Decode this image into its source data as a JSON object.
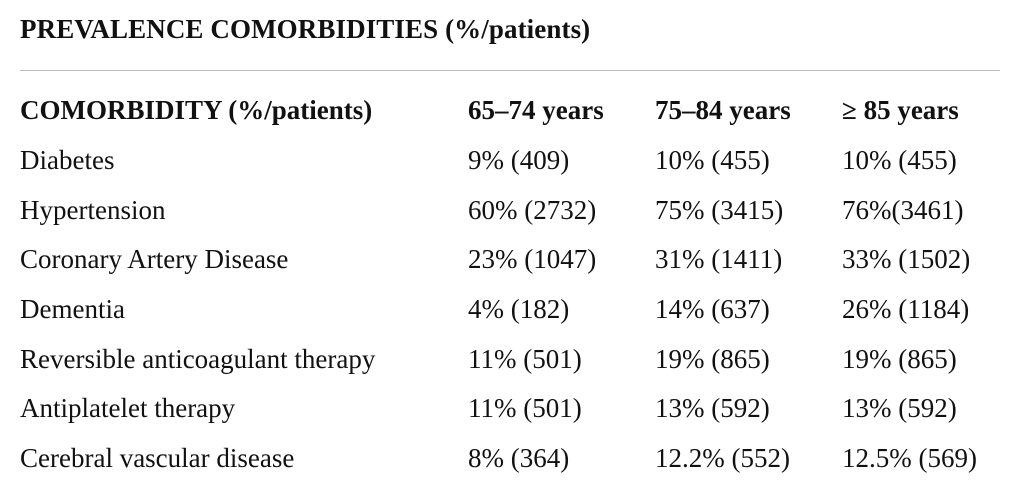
{
  "title": "PREVALENCE COMORBIDITIES (%/patients)",
  "table": {
    "headers": [
      "COMORBIDITY (%/patients)",
      "65–74 years",
      "75–84 years",
      "≥ 85 years"
    ],
    "rows": [
      [
        "Diabetes",
        "9% (409)",
        "10% (455)",
        "10% (455)"
      ],
      [
        "Hypertension",
        "60% (2732)",
        "75% (3415)",
        "76%(3461)"
      ],
      [
        "Coronary Artery Disease",
        "23% (1047)",
        "31% (1411)",
        "33% (1502)"
      ],
      [
        "Dementia",
        "4% (182)",
        "14% (637)",
        "26% (1184)"
      ],
      [
        "Reversible anticoagulant therapy",
        "11% (501)",
        "19% (865)",
        "19% (865)"
      ],
      [
        "Antiplatelet therapy",
        "11% (501)",
        "13% (592)",
        "13% (592)"
      ],
      [
        "Cerebral vascular disease",
        "8% (364)",
        "12.2% (552)",
        "12.5% (569)"
      ]
    ]
  }
}
